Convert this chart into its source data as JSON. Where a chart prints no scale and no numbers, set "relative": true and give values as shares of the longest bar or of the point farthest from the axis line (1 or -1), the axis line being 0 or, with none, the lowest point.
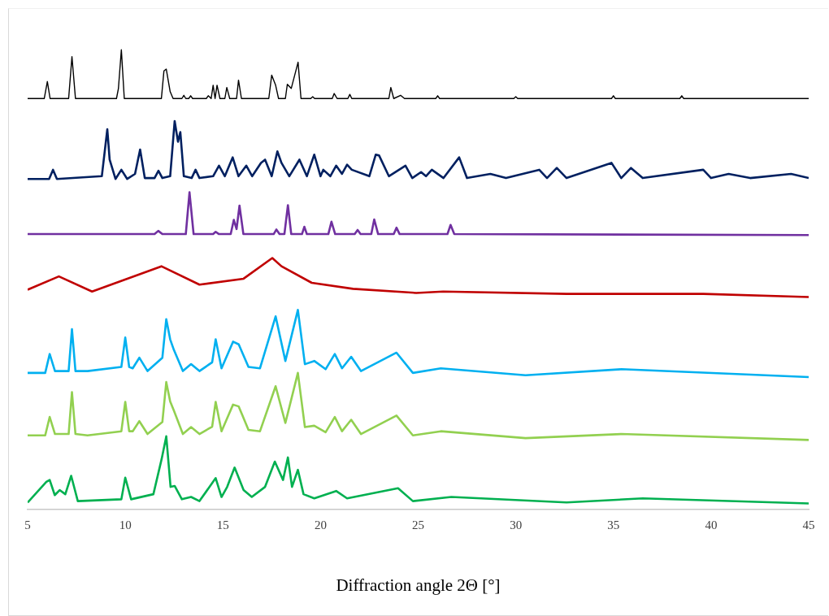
{
  "chart_data": {
    "type": "line",
    "xlabel": "Diffraction angle 2Θ [°]",
    "relative": true,
    "legend": false,
    "marker": "none",
    "grid": false,
    "line_style": "solid",
    "xlim": [
      5,
      45
    ],
    "xticks": [
      5,
      10,
      15,
      20,
      25,
      30,
      35,
      40,
      45
    ],
    "series": [
      {
        "color": "#000000",
        "x": [
          5,
          5.85,
          6.01,
          6.15,
          7.1,
          7.27,
          7.45,
          9.55,
          9.65,
          9.8,
          9.95,
          11.85,
          11.98,
          12.1,
          12.3,
          12.45,
          12.9,
          13.0,
          13.1,
          13.25,
          13.35,
          13.45,
          14.15,
          14.25,
          14.4,
          14.5,
          14.6,
          14.7,
          14.85,
          15.1,
          15.2,
          15.35,
          15.7,
          15.8,
          15.95,
          17.35,
          17.5,
          17.7,
          17.85,
          18.2,
          18.3,
          18.5,
          18.85,
          19.0,
          19.5,
          19.6,
          19.7,
          20.6,
          20.7,
          20.85,
          21.4,
          21.5,
          21.6,
          23.5,
          23.6,
          23.75,
          24.1,
          24.3,
          25.9,
          26.0,
          26.1,
          29.9,
          30.0,
          30.1,
          34.9,
          35.0,
          35.1,
          38.4,
          38.5,
          38.6,
          45
        ],
        "values": [
          0.894,
          0.894,
          0.931,
          0.894,
          0.894,
          0.985,
          0.894,
          0.894,
          0.916,
          1.0,
          0.894,
          0.894,
          0.954,
          0.958,
          0.909,
          0.894,
          0.894,
          0.901,
          0.894,
          0.894,
          0.9,
          0.894,
          0.894,
          0.9,
          0.894,
          0.923,
          0.894,
          0.923,
          0.894,
          0.894,
          0.918,
          0.894,
          0.894,
          0.934,
          0.894,
          0.894,
          0.945,
          0.923,
          0.894,
          0.894,
          0.925,
          0.916,
          0.973,
          0.894,
          0.894,
          0.898,
          0.894,
          0.894,
          0.905,
          0.894,
          0.894,
          0.903,
          0.894,
          0.894,
          0.918,
          0.894,
          0.901,
          0.894,
          0.894,
          0.9,
          0.894,
          0.894,
          0.898,
          0.894,
          0.894,
          0.9,
          0.894,
          0.894,
          0.9,
          0.894,
          0.894
        ]
      },
      {
        "color": "#002060",
        "x": [
          5,
          6.1,
          6.3,
          6.5,
          8.8,
          9.08,
          9.2,
          9.5,
          9.8,
          10.1,
          10.5,
          10.76,
          11.0,
          11.5,
          11.7,
          11.9,
          12.3,
          12.53,
          12.7,
          12.82,
          13.0,
          13.4,
          13.6,
          13.8,
          14.5,
          14.8,
          15.1,
          15.5,
          15.8,
          16.2,
          16.5,
          16.95,
          17.16,
          17.5,
          17.79,
          18.0,
          18.4,
          18.92,
          19.3,
          19.68,
          20.0,
          20.14,
          20.5,
          20.8,
          21.1,
          21.36,
          21.6,
          22.5,
          22.83,
          23.0,
          23.5,
          24.35,
          24.7,
          25.15,
          25.4,
          25.7,
          26.3,
          27.1,
          27.5,
          28.7,
          29.5,
          31.2,
          31.6,
          32.1,
          32.6,
          34.9,
          35.4,
          35.9,
          36.5,
          39.6,
          40.0,
          40.9,
          42,
          44.1,
          45
        ],
        "values": [
          0.719,
          0.719,
          0.739,
          0.719,
          0.725,
          0.827,
          0.761,
          0.719,
          0.739,
          0.719,
          0.73,
          0.783,
          0.721,
          0.721,
          0.737,
          0.721,
          0.725,
          0.845,
          0.8,
          0.821,
          0.725,
          0.721,
          0.739,
          0.721,
          0.725,
          0.748,
          0.725,
          0.766,
          0.725,
          0.748,
          0.725,
          0.754,
          0.761,
          0.725,
          0.779,
          0.754,
          0.725,
          0.761,
          0.725,
          0.772,
          0.725,
          0.739,
          0.725,
          0.748,
          0.73,
          0.75,
          0.739,
          0.725,
          0.772,
          0.77,
          0.725,
          0.748,
          0.721,
          0.734,
          0.725,
          0.739,
          0.721,
          0.766,
          0.721,
          0.73,
          0.721,
          0.739,
          0.721,
          0.743,
          0.721,
          0.754,
          0.721,
          0.743,
          0.721,
          0.739,
          0.721,
          0.73,
          0.721,
          0.73,
          0.721
        ]
      },
      {
        "color": "#7030a0",
        "x": [
          5,
          11.5,
          11.69,
          11.9,
          13.1,
          13.29,
          13.5,
          14.5,
          14.63,
          14.8,
          15.4,
          15.56,
          15.7,
          15.85,
          16.05,
          17.6,
          17.74,
          17.9,
          18.15,
          18.33,
          18.5,
          19.05,
          19.17,
          19.3,
          20.4,
          20.56,
          20.75,
          21.75,
          21.9,
          22.05,
          22.6,
          22.75,
          22.95,
          23.75,
          23.89,
          24.05,
          26.5,
          26.66,
          26.85,
          45
        ],
        "values": [
          0.599,
          0.599,
          0.606,
          0.599,
          0.599,
          0.69,
          0.599,
          0.599,
          0.604,
          0.599,
          0.599,
          0.63,
          0.61,
          0.661,
          0.599,
          0.599,
          0.609,
          0.599,
          0.599,
          0.662,
          0.599,
          0.599,
          0.615,
          0.599,
          0.599,
          0.626,
          0.599,
          0.599,
          0.608,
          0.599,
          0.599,
          0.631,
          0.599,
          0.599,
          0.613,
          0.599,
          0.599,
          0.619,
          0.599,
          0.597
        ]
      },
      {
        "color": "#c00000",
        "x": [
          5,
          6.6,
          8.3,
          11.85,
          13.8,
          16.06,
          17.53,
          18.0,
          19.55,
          21.66,
          24.9,
          26.28,
          32.6,
          39.6,
          45
        ],
        "values": [
          0.478,
          0.507,
          0.474,
          0.529,
          0.489,
          0.502,
          0.547,
          0.529,
          0.493,
          0.48,
          0.471,
          0.474,
          0.469,
          0.469,
          0.462
        ]
      },
      {
        "color": "#00b0f0",
        "x": [
          5,
          5.9,
          6.13,
          6.4,
          7.1,
          7.27,
          7.45,
          8.07,
          9.8,
          10.0,
          10.2,
          10.38,
          10.72,
          11.14,
          11.9,
          12.1,
          12.3,
          12.49,
          12.95,
          13.37,
          13.8,
          14.45,
          14.63,
          14.93,
          15.52,
          15.81,
          16.31,
          16.9,
          17.7,
          18.2,
          18.84,
          19.2,
          19.68,
          20.26,
          20.73,
          21.1,
          21.57,
          22.07,
          23.89,
          24.73,
          26.16,
          30.5,
          35.4,
          45
        ],
        "values": [
          0.297,
          0.297,
          0.338,
          0.301,
          0.301,
          0.392,
          0.301,
          0.301,
          0.31,
          0.374,
          0.31,
          0.307,
          0.33,
          0.301,
          0.33,
          0.414,
          0.37,
          0.347,
          0.301,
          0.316,
          0.301,
          0.32,
          0.37,
          0.307,
          0.365,
          0.359,
          0.31,
          0.307,
          0.42,
          0.323,
          0.434,
          0.316,
          0.323,
          0.305,
          0.338,
          0.307,
          0.332,
          0.301,
          0.341,
          0.297,
          0.307,
          0.292,
          0.305,
          0.288
        ]
      },
      {
        "color": "#92d050",
        "x": [
          5,
          5.9,
          6.13,
          6.4,
          7.1,
          7.27,
          7.45,
          8.07,
          9.8,
          10.0,
          10.2,
          10.38,
          10.72,
          11.14,
          11.9,
          12.1,
          12.3,
          12.49,
          12.95,
          13.37,
          13.8,
          14.45,
          14.63,
          14.93,
          15.52,
          15.81,
          16.31,
          16.9,
          17.7,
          18.2,
          18.84,
          19.2,
          19.68,
          20.26,
          20.73,
          21.1,
          21.57,
          22.07,
          23.89,
          24.73,
          26.16,
          30.5,
          35.4,
          45
        ],
        "values": [
          0.161,
          0.161,
          0.201,
          0.164,
          0.164,
          0.255,
          0.164,
          0.161,
          0.17,
          0.234,
          0.17,
          0.17,
          0.192,
          0.164,
          0.19,
          0.277,
          0.235,
          0.215,
          0.164,
          0.179,
          0.164,
          0.18,
          0.234,
          0.17,
          0.228,
          0.224,
          0.173,
          0.17,
          0.268,
          0.188,
          0.297,
          0.179,
          0.182,
          0.168,
          0.201,
          0.17,
          0.195,
          0.164,
          0.204,
          0.161,
          0.17,
          0.155,
          0.164,
          0.151
        ]
      },
      {
        "color": "#00b050",
        "x": [
          5,
          5.96,
          6.13,
          6.39,
          6.64,
          6.93,
          7.23,
          7.57,
          9.8,
          10.0,
          10.3,
          11.44,
          11.86,
          12.1,
          12.32,
          12.53,
          12.9,
          13.37,
          13.8,
          14.63,
          14.93,
          15.22,
          15.6,
          16.06,
          16.48,
          17.16,
          17.66,
          18.08,
          18.33,
          18.54,
          18.84,
          19.13,
          19.68,
          20.8,
          21.36,
          23.97,
          24.73,
          26.7,
          32.6,
          36.5,
          45
        ],
        "values": [
          0.015,
          0.06,
          0.064,
          0.031,
          0.042,
          0.033,
          0.073,
          0.018,
          0.022,
          0.069,
          0.022,
          0.033,
          0.109,
          0.159,
          0.049,
          0.051,
          0.022,
          0.027,
          0.018,
          0.068,
          0.027,
          0.049,
          0.091,
          0.042,
          0.027,
          0.049,
          0.104,
          0.064,
          0.113,
          0.049,
          0.086,
          0.033,
          0.024,
          0.04,
          0.024,
          0.046,
          0.018,
          0.027,
          0.015,
          0.024,
          0.013
        ]
      }
    ]
  }
}
